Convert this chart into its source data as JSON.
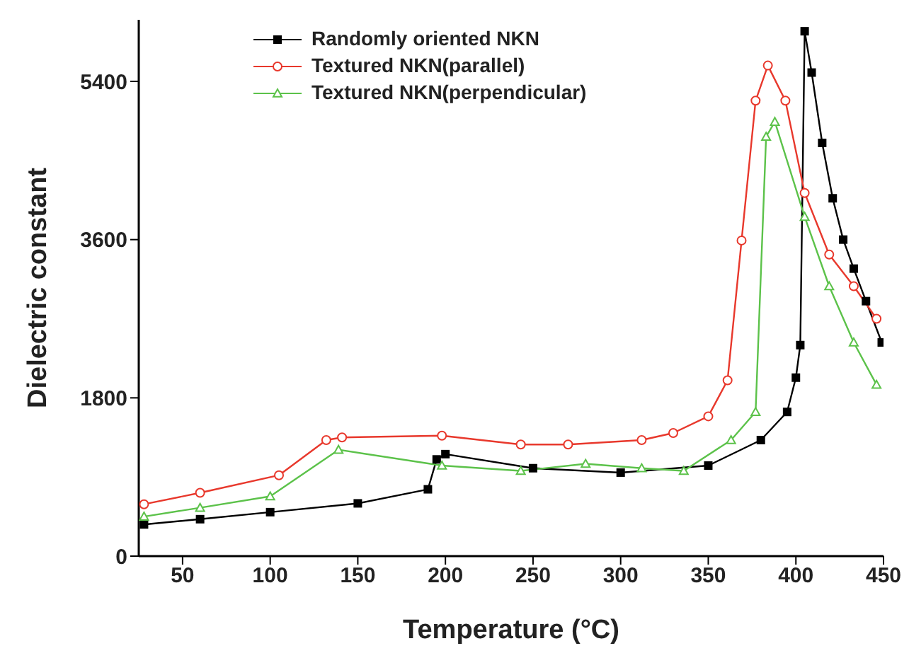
{
  "chart_data": {
    "type": "line",
    "xlabel": "Temperature (°C)",
    "ylabel": "Dielectric constant",
    "xlim": [
      25,
      450
    ],
    "xticks": [
      50,
      100,
      150,
      200,
      250,
      300,
      350,
      400,
      450
    ],
    "ylim": [
      0,
      6100
    ],
    "yticks": [
      0,
      1800,
      3600,
      5400
    ],
    "legend": "top left",
    "grid": false,
    "series": [
      {
        "name": "Randomly oriented NKN",
        "color": "#000000",
        "marker": "square",
        "x": [
          28,
          60,
          100,
          150,
          190,
          195,
          200,
          250,
          300,
          350,
          380,
          395,
          400,
          402.5,
          405,
          409,
          415,
          421,
          427,
          433,
          440,
          449
        ],
        "values": [
          360,
          420,
          500,
          600,
          760,
          1100,
          1160,
          1000,
          950,
          1030,
          1320,
          1640,
          2030,
          2400,
          5970,
          5500,
          4700,
          4070,
          3600,
          3270,
          2900,
          2430
        ]
      },
      {
        "name": "Textured NKN(parallel)",
        "color": "#e8382c",
        "marker": "circle",
        "x": [
          28,
          60,
          105,
          132,
          141,
          198,
          243,
          270,
          312,
          330,
          350,
          361,
          369,
          377,
          384,
          394,
          405,
          419,
          433,
          446
        ],
        "values": [
          590,
          720,
          920,
          1320,
          1350,
          1370,
          1270,
          1270,
          1320,
          1400,
          1590,
          2000,
          3590,
          5180,
          5580,
          5180,
          4130,
          3430,
          3070,
          2700
        ]
      },
      {
        "name": "Textured NKN(perpendicular)",
        "color": "#5cc24a",
        "marker": "triangle",
        "x": [
          28,
          60,
          100,
          139,
          198,
          243,
          280,
          312,
          336,
          363,
          377,
          383,
          388,
          405,
          419,
          433,
          446
        ],
        "values": [
          450,
          550,
          680,
          1210,
          1030,
          970,
          1050,
          1000,
          970,
          1320,
          1640,
          4770,
          4940,
          3860,
          3070,
          2430,
          1950
        ]
      }
    ]
  }
}
